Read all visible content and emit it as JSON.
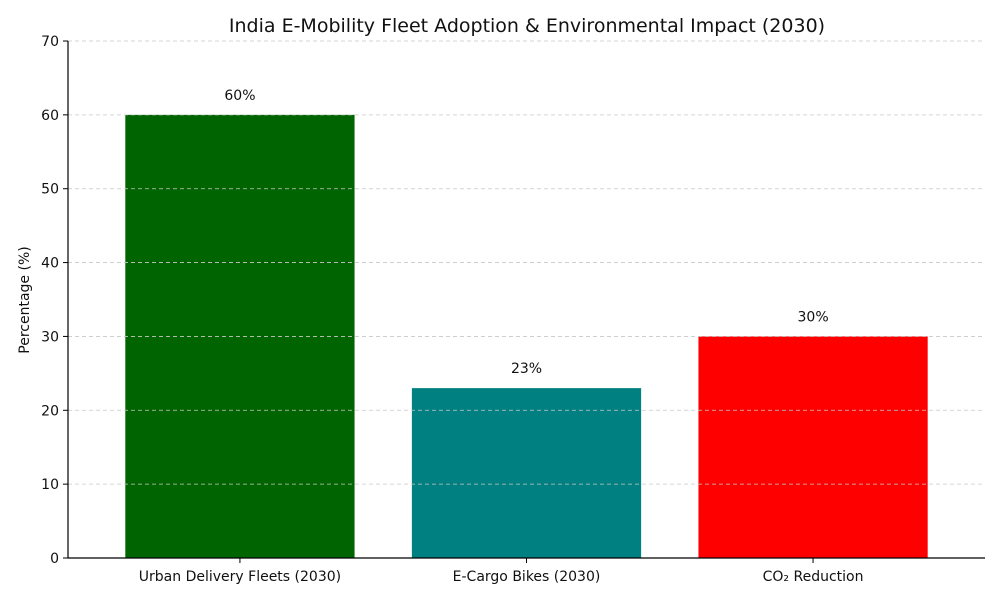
{
  "chart_data": {
    "type": "bar",
    "title": "India E-Mobility Fleet Adoption & Environmental Impact (2030)",
    "xlabel": "",
    "ylabel": "Percentage (%)",
    "categories": [
      "Urban Delivery Fleets (2030)",
      "E-Cargo Bikes (2030)",
      "CO₂ Reduction"
    ],
    "values": [
      60,
      23,
      30
    ],
    "data_labels": [
      "60%",
      "23%",
      "30%"
    ],
    "colors": [
      "#006400",
      "#008080",
      "#ff0000"
    ],
    "ylim": [
      0,
      70
    ],
    "yticks": [
      0,
      10,
      20,
      30,
      40,
      50,
      60,
      70
    ],
    "grid": true,
    "grid_axis": "y",
    "legend": "none"
  }
}
